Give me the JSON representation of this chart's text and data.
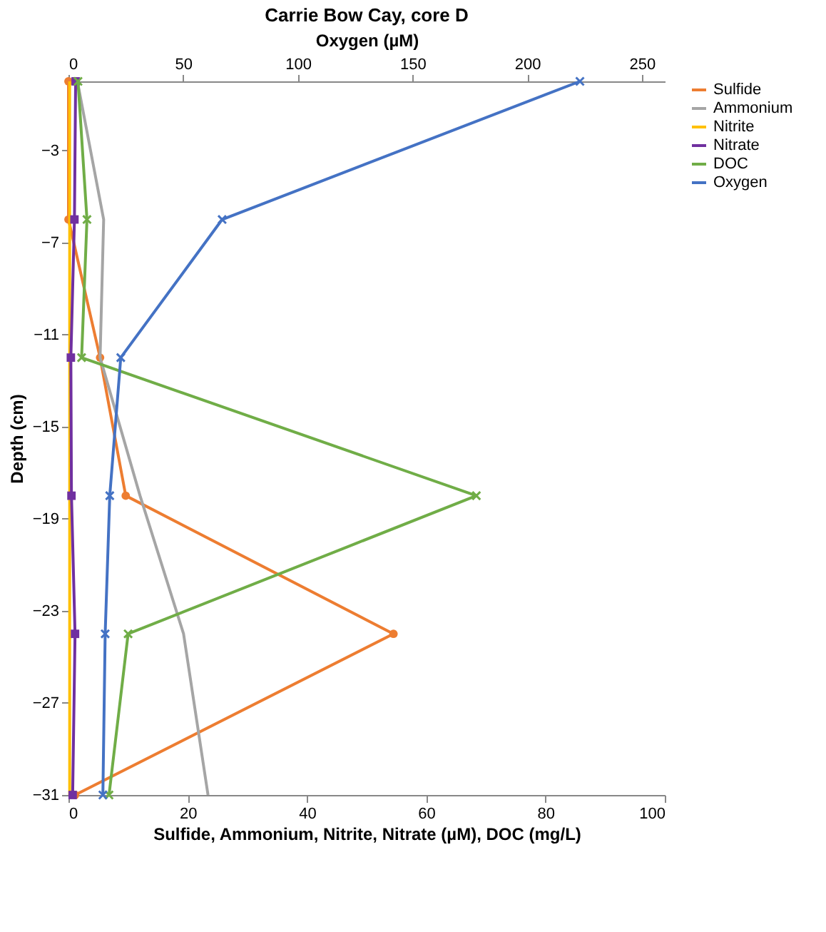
{
  "chart_data": {
    "type": "line",
    "orientation": "horizontal",
    "title": "Carrie Bow Cay, core D",
    "xlabel": "Sulfide, Ammonium, Nitrite, Nitrate (µM),  DOC (mg/L)",
    "x2label": "Oxygen (µM)",
    "ylabel": "Depth (cm)",
    "xlim": [
      0,
      100
    ],
    "xticks": [
      0,
      20,
      40,
      60,
      80,
      100
    ],
    "x2lim": [
      0,
      260
    ],
    "x2ticks": [
      0,
      50,
      100,
      150,
      200,
      250
    ],
    "ylim": [
      -31,
      0
    ],
    "yticks": [
      -3,
      -7,
      -11,
      -15,
      -19,
      -23,
      -27,
      -31
    ],
    "legend": "right",
    "x": [
      0,
      -6,
      -12,
      -18,
      -24,
      -31
    ],
    "series": [
      {
        "name": "Sulfide",
        "color": "#ed7d31",
        "marker": "circle",
        "values": [
          0,
          0,
          5.3,
          9.6,
          54.5,
          1.1
        ]
      },
      {
        "name": "Ammonium",
        "color": "#a5a5a5",
        "marker": "none",
        "values": [
          1.5,
          5.9,
          5.3,
          12,
          19.3,
          23.4
        ]
      },
      {
        "name": "Nitrite",
        "color": "#ffc000",
        "marker": "none",
        "values": [
          0.2,
          0.2,
          0.2,
          0.2,
          0.2,
          0.2
        ]
      },
      {
        "name": "Nitrate",
        "color": "#7030a0",
        "marker": "square",
        "values": [
          1.2,
          1,
          0.4,
          0.5,
          1.1,
          0.7
        ]
      },
      {
        "name": "DOC",
        "color": "#70ad47",
        "marker": "cross",
        "values": [
          1.6,
          3.1,
          2.2,
          68.4,
          10,
          6.8
        ]
      },
      {
        "name": "Oxygen",
        "color": "#4472c4",
        "marker": "cross",
        "axis": "x2",
        "values": [
          223,
          67,
          22.8,
          18,
          16,
          15
        ]
      }
    ]
  }
}
